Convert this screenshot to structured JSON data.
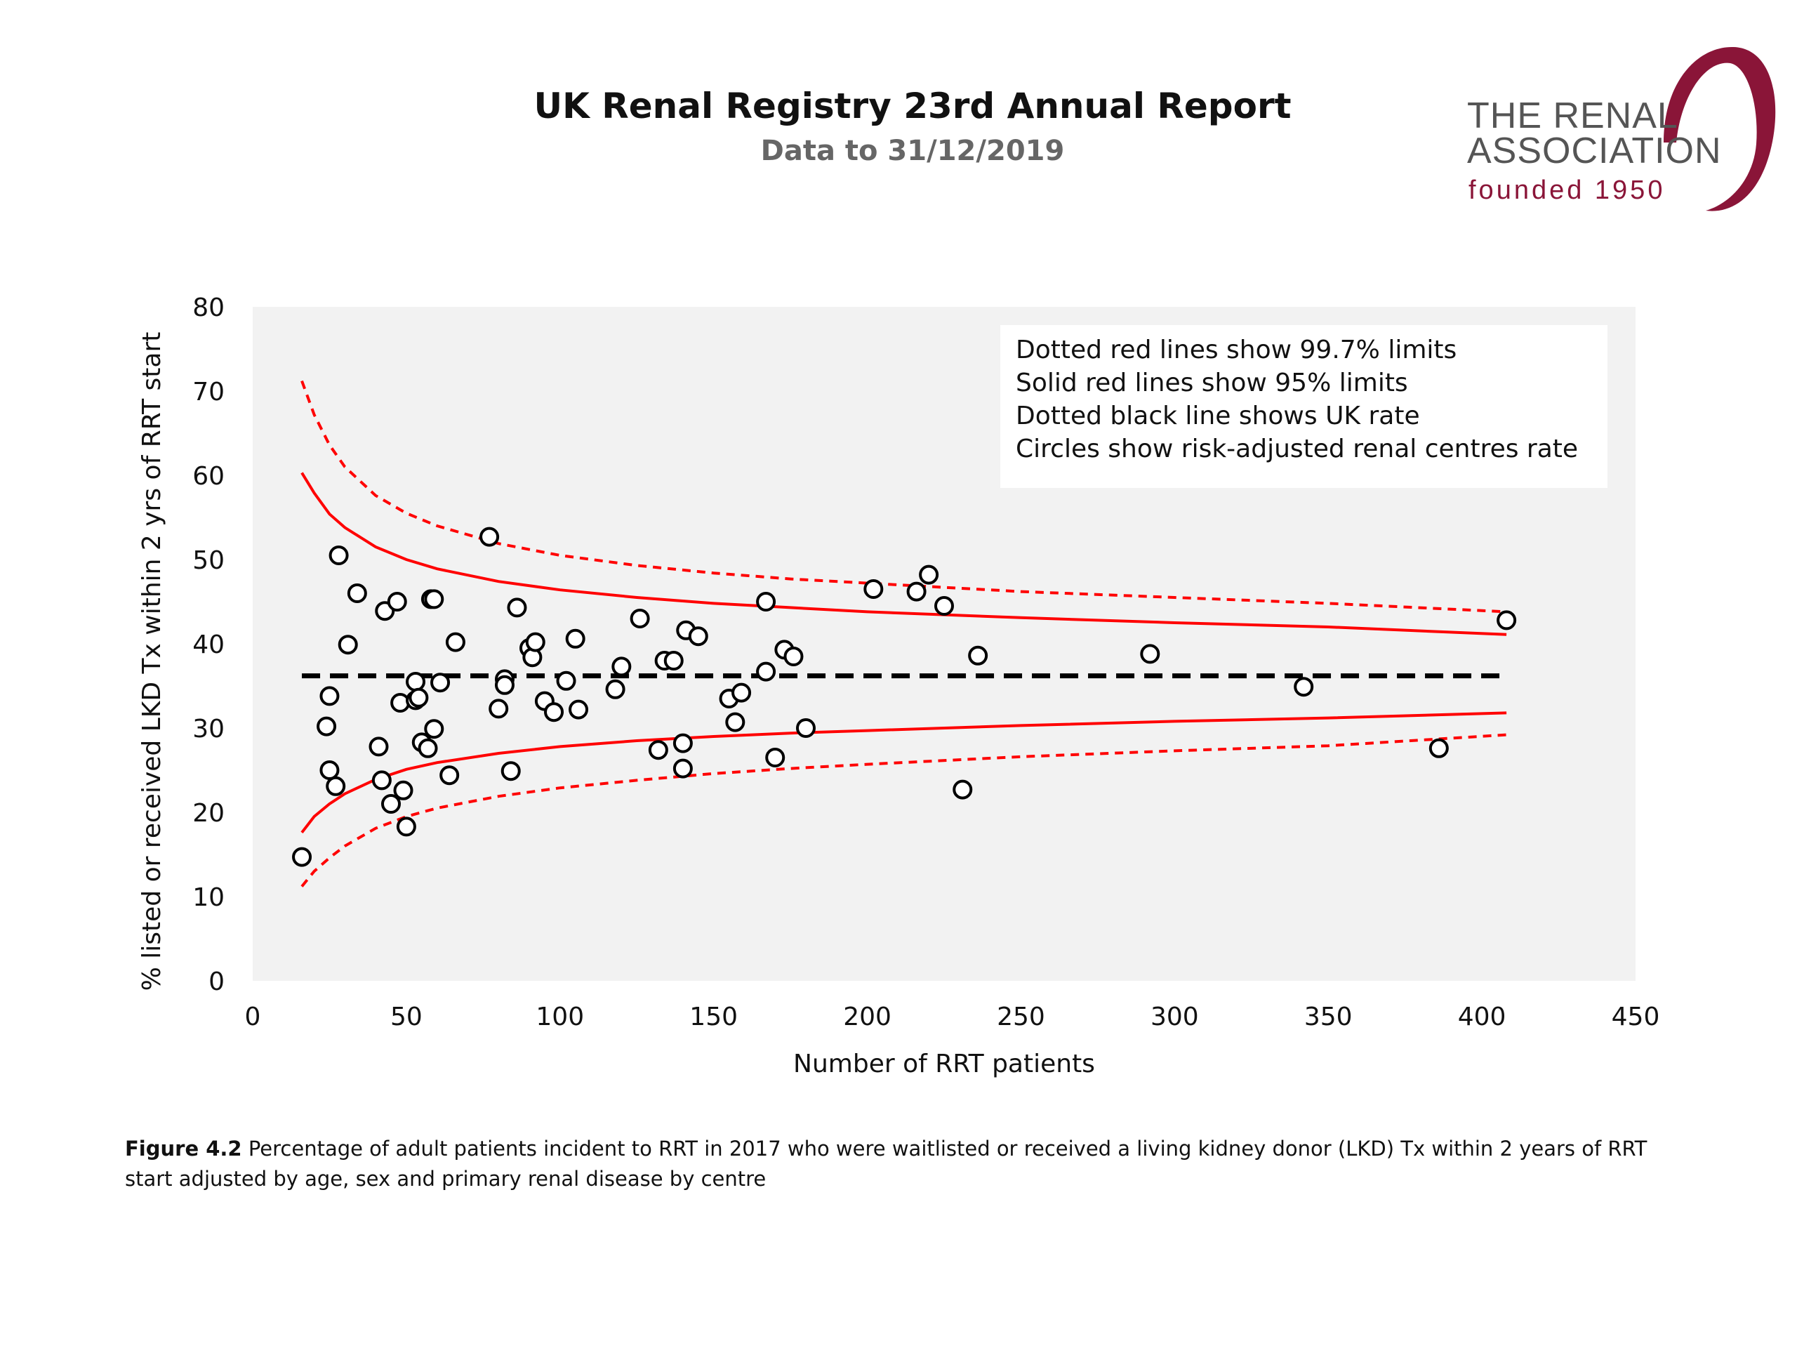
{
  "header": {
    "title": "UK Renal Registry 23rd Annual Report",
    "subtitle": "Data to 31/12/2019"
  },
  "logo": {
    "line1": "THE RENAL",
    "line2": "ASSOCIATION",
    "line3": "founded 1950",
    "color": "#8a1538"
  },
  "caption": {
    "label": "Figure 4.2",
    "text": " Percentage of adult patients incident to RRT in 2017 who were waitlisted or received a living kidney donor (LKD) Tx within 2 years of RRT start adjusted by age, sex and primary renal disease by centre"
  },
  "legend": {
    "lines": [
      "Dotted red lines show 99.7% limits",
      "Solid red lines show 95% limits",
      "Dotted black line shows UK rate",
      "Circles show risk-adjusted renal centres rate"
    ]
  },
  "chart_data": {
    "type": "scatter",
    "xlabel": "Number of RRT patients",
    "ylabel": "% listed or received LKD Tx within 2 yrs of RRT start",
    "xlim": [
      0,
      450
    ],
    "ylim": [
      0,
      80
    ],
    "xticks": [
      0,
      50,
      100,
      150,
      200,
      250,
      300,
      350,
      400,
      450
    ],
    "yticks": [
      0,
      10,
      20,
      30,
      40,
      50,
      60,
      70,
      80
    ],
    "grid": false,
    "uk_rate": 36.2,
    "colors": {
      "limits": "#ff0000",
      "uk_rate": "#000000",
      "points": "#000000",
      "plot_bg": "#f2f2f2"
    },
    "limit_x": [
      16,
      20,
      25,
      30,
      40,
      50,
      60,
      80,
      100,
      125,
      150,
      175,
      200,
      250,
      300,
      350,
      408
    ],
    "upper_997": [
      71.2,
      67.2,
      63.6,
      61.0,
      57.6,
      55.5,
      54.0,
      51.9,
      50.5,
      49.3,
      48.4,
      47.7,
      47.2,
      46.2,
      45.5,
      44.8,
      43.8
    ],
    "upper_95": [
      60.3,
      57.9,
      55.4,
      53.8,
      51.5,
      50.0,
      48.9,
      47.4,
      46.4,
      45.5,
      44.8,
      44.3,
      43.8,
      43.1,
      42.5,
      42.0,
      41.1
    ],
    "lower_95": [
      17.6,
      19.5,
      21.0,
      22.2,
      23.9,
      25.1,
      25.9,
      27.0,
      27.8,
      28.5,
      29.0,
      29.4,
      29.7,
      30.3,
      30.8,
      31.2,
      31.8
    ],
    "lower_997": [
      11.2,
      13.0,
      14.6,
      16.0,
      18.1,
      19.5,
      20.5,
      21.9,
      22.9,
      23.8,
      24.6,
      25.2,
      25.7,
      26.6,
      27.3,
      27.9,
      29.2
    ],
    "points": [
      [
        16,
        14.7
      ],
      [
        24,
        30.2
      ],
      [
        25,
        25.0
      ],
      [
        25,
        33.8
      ],
      [
        27,
        23.1
      ],
      [
        28,
        50.5
      ],
      [
        31,
        39.9
      ],
      [
        34,
        46.0
      ],
      [
        41,
        27.8
      ],
      [
        42,
        23.8
      ],
      [
        43,
        43.9
      ],
      [
        45,
        21.0
      ],
      [
        47,
        45.0
      ],
      [
        48,
        33.0
      ],
      [
        49,
        22.6
      ],
      [
        50,
        18.3
      ],
      [
        53,
        35.5
      ],
      [
        53,
        33.3
      ],
      [
        54,
        33.6
      ],
      [
        55,
        28.3
      ],
      [
        57,
        27.6
      ],
      [
        58,
        45.3
      ],
      [
        59,
        45.3
      ],
      [
        59,
        29.9
      ],
      [
        61,
        35.4
      ],
      [
        64,
        24.4
      ],
      [
        66,
        40.2
      ],
      [
        77,
        52.7
      ],
      [
        80,
        32.3
      ],
      [
        82,
        35.8
      ],
      [
        82,
        35.1
      ],
      [
        84,
        24.9
      ],
      [
        86,
        44.3
      ],
      [
        90,
        39.5
      ],
      [
        91,
        38.4
      ],
      [
        92,
        40.2
      ],
      [
        95,
        33.2
      ],
      [
        98,
        31.9
      ],
      [
        102,
        35.6
      ],
      [
        105,
        40.6
      ],
      [
        106,
        32.2
      ],
      [
        118,
        34.6
      ],
      [
        120,
        37.3
      ],
      [
        126,
        43.0
      ],
      [
        132,
        27.4
      ],
      [
        134,
        38.0
      ],
      [
        137,
        38.0
      ],
      [
        140,
        28.2
      ],
      [
        140,
        25.2
      ],
      [
        141,
        41.6
      ],
      [
        145,
        40.9
      ],
      [
        155,
        33.5
      ],
      [
        157,
        30.7
      ],
      [
        159,
        34.2
      ],
      [
        167,
        45.0
      ],
      [
        167,
        36.7
      ],
      [
        170,
        26.5
      ],
      [
        173,
        39.3
      ],
      [
        176,
        38.5
      ],
      [
        180,
        30.0
      ],
      [
        202,
        46.5
      ],
      [
        216,
        46.2
      ],
      [
        220,
        48.2
      ],
      [
        225,
        44.5
      ],
      [
        231,
        22.7
      ],
      [
        236,
        38.6
      ],
      [
        292,
        38.8
      ],
      [
        342,
        34.9
      ],
      [
        386,
        27.6
      ],
      [
        408,
        42.8
      ]
    ]
  }
}
